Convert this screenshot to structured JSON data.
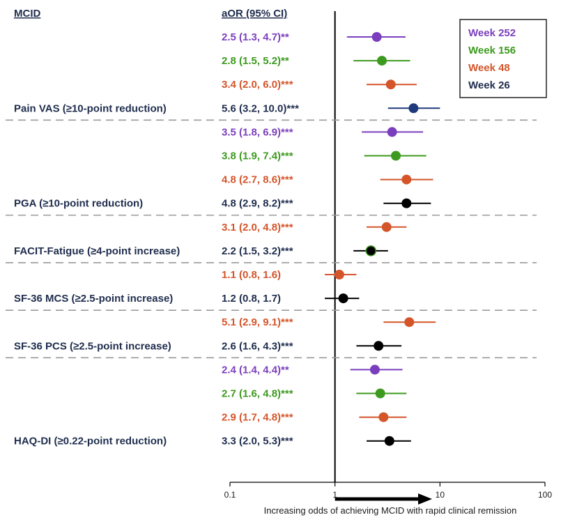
{
  "chart_data": {
    "type": "forest",
    "x_scale": "log",
    "xlim": [
      0.1,
      100
    ],
    "x_ticks": [
      "0.1",
      "1",
      "10",
      "100"
    ],
    "reference_line": 1,
    "column_headers": {
      "label": "MCID",
      "estimate": "aOR (95% CI)"
    },
    "xlabel": "Increasing odds of achieving MCID with rapid clinical remission",
    "colors": {
      "Week 252": "#7b3fbd",
      "Week 156": "#3c9a1e",
      "Week 48": "#d4552a",
      "Week 26": "#1f2d4d",
      "marker_week26": "#1f3a7a"
    },
    "legend": {
      "entries": [
        "Week 252",
        "Week 156",
        "Week 48",
        "Week 26"
      ],
      "position": "top-right"
    },
    "groups": [
      {
        "label": "Pain VAS (≥10-point reduction)",
        "rows": [
          {
            "series": "Week 252",
            "or": 2.5,
            "lo": 1.3,
            "hi": 4.7,
            "text": "2.5 (1.3, 4.7)**"
          },
          {
            "series": "Week 156",
            "or": 2.8,
            "lo": 1.5,
            "hi": 5.2,
            "text": "2.8 (1.5, 5.2)**"
          },
          {
            "series": "Week 48",
            "or": 3.4,
            "lo": 2.0,
            "hi": 6.0,
            "text": "3.4 (2.0, 6.0)***"
          },
          {
            "series": "Week 26",
            "or": 5.6,
            "lo": 3.2,
            "hi": 10.0,
            "text": "5.6 (3.2, 10.0)***"
          }
        ]
      },
      {
        "label": "PGA (≥10-point reduction)",
        "rows": [
          {
            "series": "Week 252",
            "or": 3.5,
            "lo": 1.8,
            "hi": 6.9,
            "text": "3.5 (1.8, 6.9)***"
          },
          {
            "series": "Week 156",
            "or": 3.8,
            "lo": 1.9,
            "hi": 7.4,
            "text": "3.8 (1.9, 7.4)***"
          },
          {
            "series": "Week 48",
            "or": 4.8,
            "lo": 2.7,
            "hi": 8.6,
            "text": "4.8 (2.7, 8.6)***"
          },
          {
            "series": "Week 26",
            "or": 4.8,
            "lo": 2.9,
            "hi": 8.2,
            "text": "4.8 (2.9, 8.2)***"
          }
        ]
      },
      {
        "label": "FACIT-Fatigue (≥4-point increase)",
        "rows": [
          {
            "series": "Week 48",
            "or": 3.1,
            "lo": 2.0,
            "hi": 4.8,
            "text": "3.1 (2.0, 4.8)***"
          },
          {
            "series": "Week 26",
            "or": 2.2,
            "lo": 1.5,
            "hi": 3.2,
            "text": "2.2 (1.5, 3.2)***"
          }
        ]
      },
      {
        "label": "SF-36 MCS (≥2.5-point increase)",
        "rows": [
          {
            "series": "Week 48",
            "or": 1.1,
            "lo": 0.8,
            "hi": 1.6,
            "text": "1.1 (0.8, 1.6)"
          },
          {
            "series": "Week 26",
            "or": 1.2,
            "lo": 0.8,
            "hi": 1.7,
            "text": "1.2 (0.8, 1.7)"
          }
        ]
      },
      {
        "label": "SF-36 PCS (≥2.5-point increase)",
        "rows": [
          {
            "series": "Week 48",
            "or": 5.1,
            "lo": 2.9,
            "hi": 9.1,
            "text": "5.1 (2.9, 9.1)***"
          },
          {
            "series": "Week 26",
            "or": 2.6,
            "lo": 1.6,
            "hi": 4.3,
            "text": "2.6 (1.6, 4.3)***"
          }
        ]
      },
      {
        "label": "HAQ-DI (≥0.22-point reduction)",
        "rows": [
          {
            "series": "Week 252",
            "or": 2.4,
            "lo": 1.4,
            "hi": 4.4,
            "text": "2.4 (1.4, 4.4)**"
          },
          {
            "series": "Week 156",
            "or": 2.7,
            "lo": 1.6,
            "hi": 4.8,
            "text": "2.7 (1.6, 4.8)***"
          },
          {
            "series": "Week 48",
            "or": 2.9,
            "lo": 1.7,
            "hi": 4.8,
            "text": "2.9 (1.7, 4.8)***"
          },
          {
            "series": "Week 26",
            "or": 3.3,
            "lo": 2.0,
            "hi": 5.3,
            "text": "3.3 (2.0, 5.3)***"
          }
        ]
      }
    ]
  }
}
